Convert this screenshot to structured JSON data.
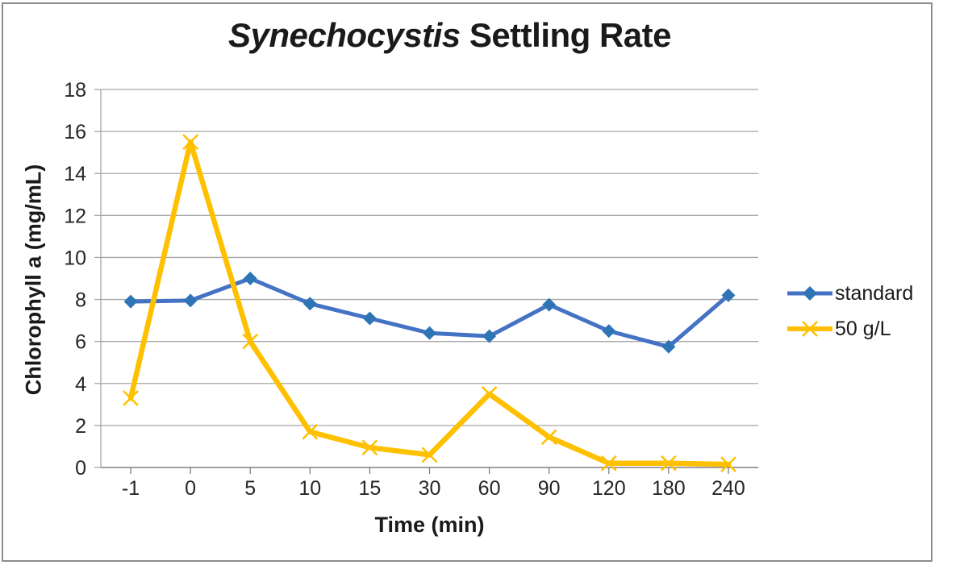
{
  "title": {
    "italic": "Synechocystis",
    "rest": "Settling Rate"
  },
  "chart_data": {
    "type": "line",
    "title": "Synechocystis Settling Rate",
    "xlabel": "Time (min)",
    "ylabel": "Chlorophyll a (mg/mL)",
    "categories": [
      "-1",
      "0",
      "5",
      "10",
      "15",
      "30",
      "60",
      "90",
      "120",
      "180",
      "240"
    ],
    "y_ticks": [
      0,
      2,
      4,
      6,
      8,
      10,
      12,
      14,
      16,
      18
    ],
    "ylim": [
      0,
      18
    ],
    "grid": "horizontal",
    "legend_position": "right",
    "series": [
      {
        "name": "standard",
        "marker": "diamond",
        "color": "#4472C4",
        "marker_color": "#2E75B6",
        "values": [
          7.9,
          7.95,
          9.0,
          7.8,
          7.1,
          6.4,
          6.25,
          7.75,
          6.5,
          5.75,
          8.2
        ]
      },
      {
        "name": "50 g/L",
        "marker": "x",
        "color": "#FFC000",
        "marker_color": "#FFC000",
        "values": [
          3.3,
          15.5,
          6.0,
          1.7,
          0.95,
          0.6,
          3.5,
          1.45,
          0.2,
          0.2,
          0.15
        ]
      }
    ]
  },
  "colors": {
    "gridline": "#A6A6A6",
    "axis": "#808080",
    "frame_border": "#8C8C8C",
    "text": "#262626"
  }
}
